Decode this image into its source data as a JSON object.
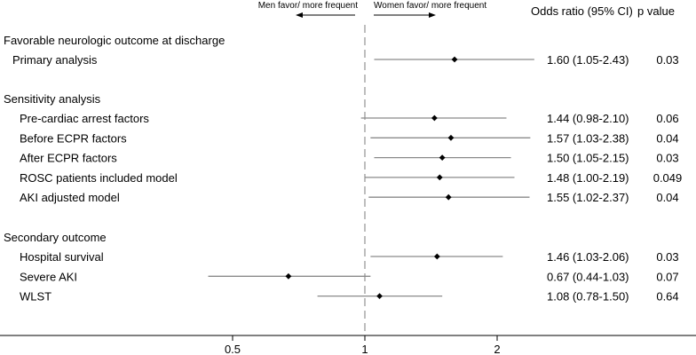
{
  "chart_data": {
    "type": "forest",
    "x_scale": "log",
    "reference_line": 1,
    "x_ticks": [
      "0.5",
      "1",
      "2"
    ],
    "header": {
      "left_arrow_label": "Men favor/ more frequent",
      "right_arrow_label": "Women favor/ more frequent",
      "or_column": "Odds ratio (95% CI)",
      "p_column": "p value"
    },
    "sections": [
      {
        "label": "Favorable neurologic outcome at discharge",
        "rows": [
          {
            "label": "Primary analysis",
            "or": 1.6,
            "lo": 1.05,
            "hi": 2.43,
            "or_text": "1.60 (1.05-2.43)",
            "p": "0.03"
          }
        ]
      },
      {
        "label": "Sensitivity analysis",
        "rows": [
          {
            "label": "Pre-cardiac arrest factors",
            "or": 1.44,
            "lo": 0.98,
            "hi": 2.1,
            "or_text": "1.44 (0.98-2.10)",
            "p": "0.06"
          },
          {
            "label": "Before ECPR factors",
            "or": 1.57,
            "lo": 1.03,
            "hi": 2.38,
            "or_text": "1.57 (1.03-2.38)",
            "p": "0.04"
          },
          {
            "label": "After ECPR factors",
            "or": 1.5,
            "lo": 1.05,
            "hi": 2.15,
            "or_text": "1.50 (1.05-2.15)",
            "p": "0.03"
          },
          {
            "label": "ROSC patients included model",
            "or": 1.48,
            "lo": 1.0,
            "hi": 2.19,
            "or_text": "1.48 (1.00-2.19)",
            "p": "0.049"
          },
          {
            "label": "AKI adjusted model",
            "or": 1.55,
            "lo": 1.02,
            "hi": 2.37,
            "or_text": "1.55 (1.02-2.37)",
            "p": "0.04"
          }
        ]
      },
      {
        "label": "Secondary outcome",
        "rows": [
          {
            "label": "Hospital survival",
            "or": 1.46,
            "lo": 1.03,
            "hi": 2.06,
            "or_text": "1.46 (1.03-2.06)",
            "p": "0.03"
          },
          {
            "label": "Severe AKI",
            "or": 0.67,
            "lo": 0.44,
            "hi": 1.03,
            "or_text": "0.67 (0.44-1.03)",
            "p": "0.07"
          },
          {
            "label": "WLST",
            "or": 1.08,
            "lo": 0.78,
            "hi": 1.5,
            "or_text": "1.08 (0.78-1.50)",
            "p": "0.64"
          }
        ]
      }
    ]
  }
}
